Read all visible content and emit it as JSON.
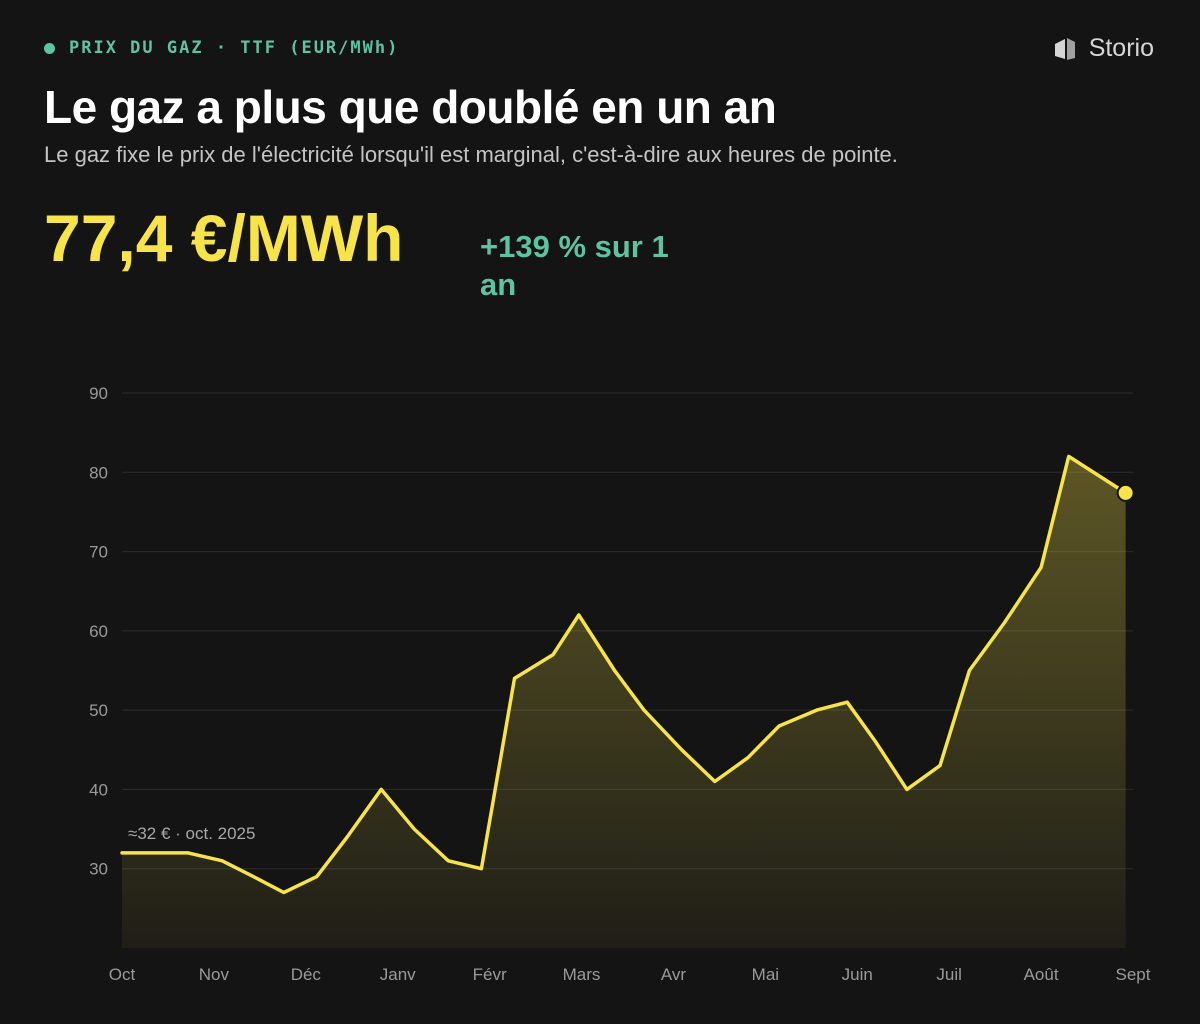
{
  "header": {
    "eyebrow": "PRIX DU GAZ · TTF (EUR/MWh)",
    "brand": "Storio",
    "brand_icon": "storio-logo-icon",
    "title": "Le gaz a plus que doublé en un an",
    "subtitle": "Le gaz fixe le prix de l'électricité lorsqu'il est marginal, c'est-à-dire aux heures de pointe.",
    "big_value": "77,4 €/MWh",
    "change": "+139 % sur 1 an"
  },
  "colors": {
    "background": "#141414",
    "accent_green": "#5ec4a0",
    "accent_yellow": "#f7e34a"
  },
  "chart_data": {
    "type": "area",
    "x": [
      0,
      0.36,
      0.72,
      1.09,
      1.43,
      1.76,
      2.12,
      2.45,
      2.82,
      3.18,
      3.55,
      3.91,
      4.27,
      4.69,
      4.97,
      5.36,
      5.68,
      6.09,
      6.45,
      6.81,
      7.15,
      7.56,
      7.89,
      8.2,
      8.54,
      8.9,
      9.22,
      9.6,
      10.0,
      10.3,
      10.92
    ],
    "values": [
      32,
      32,
      32,
      31,
      29,
      27,
      29,
      34,
      40,
      35,
      31,
      30,
      54,
      57,
      62,
      55,
      50,
      45,
      41,
      44,
      48,
      50,
      51,
      46,
      40,
      43,
      55,
      61,
      68,
      82,
      77.4
    ],
    "categories": [
      "Oct",
      "Nov",
      "Déc",
      "Janv",
      "Févr",
      "Mars",
      "Avr",
      "Mai",
      "Juin",
      "Juil",
      "Août",
      "Sept"
    ],
    "category_x": [
      0,
      1,
      2,
      3,
      4,
      5,
      6,
      7,
      8,
      9,
      10,
      11
    ],
    "ylim": [
      20,
      90
    ],
    "yticks": [
      30,
      40,
      50,
      60,
      70,
      80,
      90
    ],
    "grid": true,
    "annotation": {
      "text": "≈32 € · oct. 2025",
      "x": 0,
      "y": 32
    },
    "last_point": {
      "x": 10.92,
      "y": 77.4
    },
    "xlabel": "",
    "ylabel": ""
  }
}
